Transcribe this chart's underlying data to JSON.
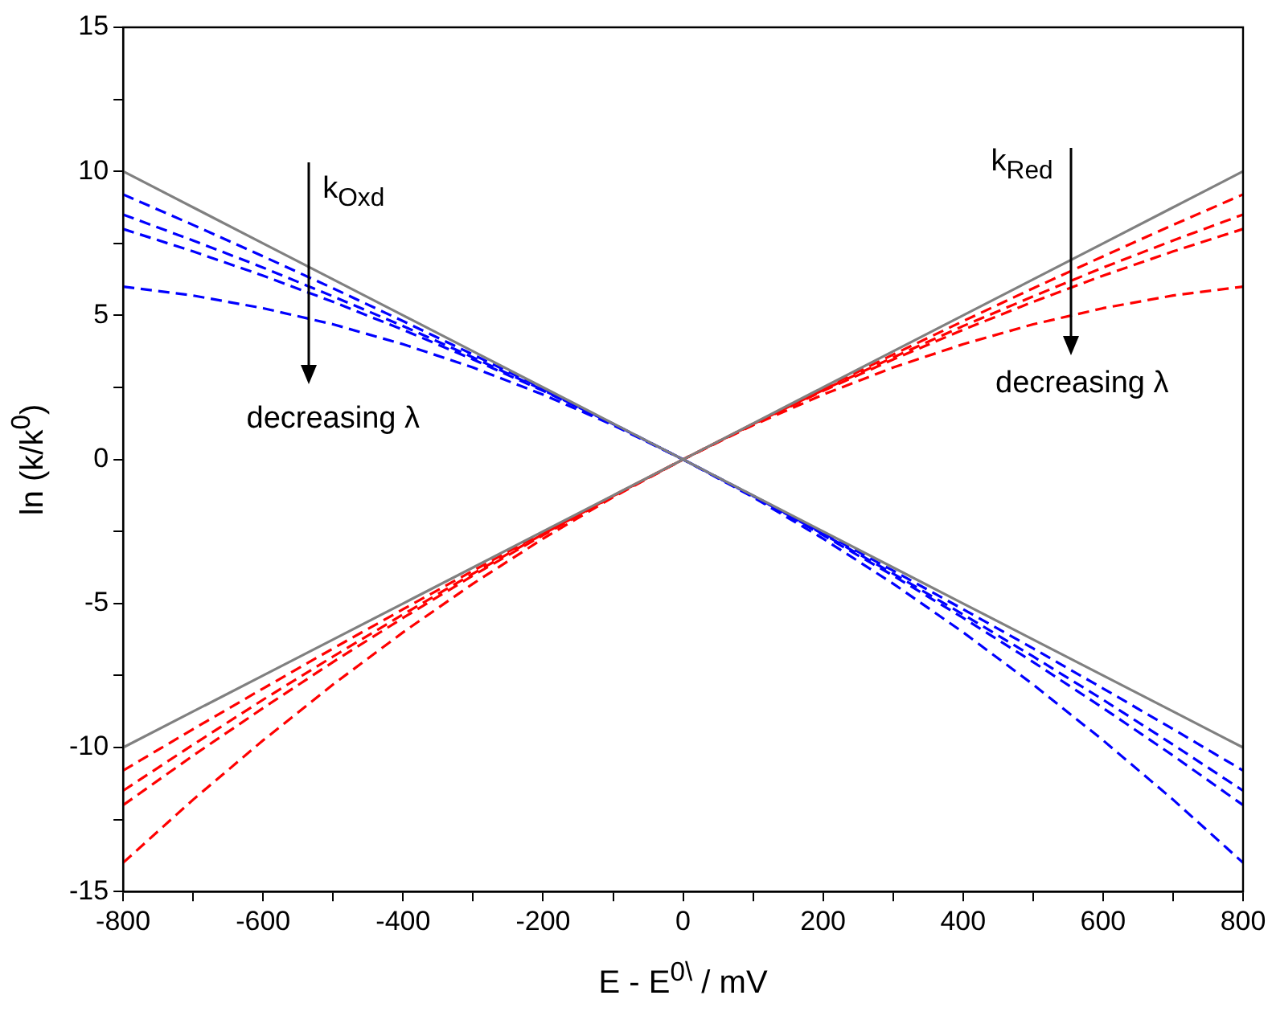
{
  "chart_data": {
    "type": "line",
    "xlabel": "E - E$^{0\\}$ / mV",
    "ylabel": "ln (k/k$^{0}$)",
    "x": [
      -800,
      -700,
      -600,
      -500,
      -400,
      -300,
      -200,
      -100,
      0,
      100,
      200,
      300,
      400,
      500,
      600,
      700,
      800
    ],
    "xlim": [
      -800,
      800
    ],
    "ylim": [
      -15,
      15
    ],
    "xticks": [
      -800,
      {
        "value": -700,
        "label": null
      },
      -600,
      {
        "value": -500,
        "label": null
      },
      -400,
      {
        "value": -300,
        "label": null
      },
      -200,
      {
        "value": -100,
        "label": null
      },
      0,
      {
        "value": 100,
        "label": null
      },
      200,
      {
        "value": 300,
        "label": null
      },
      400,
      {
        "value": 500,
        "label": null
      },
      600,
      {
        "value": 700,
        "label": null
      },
      800
    ],
    "yticks": [
      -15,
      {
        "value": -12.5,
        "label": null
      },
      -10,
      {
        "value": -7.5,
        "label": null
      },
      -5,
      {
        "value": -2.5,
        "label": null
      },
      0,
      {
        "value": 2.5,
        "label": null
      },
      5,
      {
        "value": 7.5,
        "label": null
      },
      10,
      {
        "value": 12.5,
        "label": null
      },
      15
    ],
    "grid": false,
    "legend": false,
    "marker": "none",
    "annotations": [
      "k$_{Oxd}$",
      "decreasing λ",
      "k$_{Red}$",
      "decreasing λ"
    ],
    "series": [
      {
        "color": "#808080",
        "line_style": "solid",
        "values": [
          10,
          8.75,
          7.5,
          6.25,
          5,
          3.75,
          2.5,
          1.25,
          0,
          -1.25,
          -2.5,
          -3.75,
          -5,
          -6.25,
          -7.5,
          -8.75,
          -10
        ]
      },
      {
        "color": "#808080",
        "line_style": "solid",
        "values": [
          -10,
          -8.75,
          -7.5,
          -6.25,
          -5,
          -3.75,
          -2.5,
          -1.25,
          0,
          1.25,
          2.5,
          3.75,
          5,
          6.25,
          7.5,
          8.75,
          10
        ]
      },
      {
        "color": "#0000ff",
        "line_style": "dashed",
        "values": [
          9.2,
          8.14,
          7.05,
          5.94,
          4.8,
          3.64,
          2.45,
          1.24,
          0,
          -1.26,
          -2.55,
          -3.86,
          -5.2,
          -6.56,
          -7.95,
          -9.36,
          -10.8
        ]
      },
      {
        "color": "#0000ff",
        "line_style": "dashed",
        "values": [
          8.5,
          7.6,
          6.66,
          5.66,
          4.63,
          3.54,
          2.41,
          1.23,
          0,
          -1.27,
          -2.59,
          -3.96,
          -5.38,
          -6.84,
          -8.34,
          -9.9,
          -11.5
        ]
      },
      {
        "color": "#0000ff",
        "line_style": "dashed",
        "values": [
          8.0,
          7.22,
          6.38,
          5.47,
          4.5,
          3.47,
          2.38,
          1.22,
          0,
          -1.28,
          -2.63,
          -4.03,
          -5.5,
          -7.03,
          -8.63,
          -10.28,
          -12.0
        ]
      },
      {
        "color": "#0000ff",
        "line_style": "dashed",
        "values": [
          6.0,
          5.69,
          5.25,
          4.69,
          4.0,
          3.19,
          2.25,
          1.19,
          0,
          -1.31,
          -2.75,
          -4.31,
          -6.0,
          -7.81,
          -9.75,
          -11.81,
          -14.0
        ]
      },
      {
        "color": "#ff0000",
        "line_style": "dashed",
        "values": [
          -10.8,
          -9.36,
          -7.95,
          -6.56,
          -5.2,
          -3.86,
          -2.55,
          -1.26,
          0,
          1.24,
          2.45,
          3.64,
          4.8,
          5.94,
          7.05,
          8.14,
          9.2
        ]
      },
      {
        "color": "#ff0000",
        "line_style": "dashed",
        "values": [
          -11.5,
          -9.9,
          -8.34,
          -6.84,
          -5.38,
          -3.96,
          -2.59,
          -1.27,
          0,
          1.23,
          2.41,
          3.54,
          4.63,
          5.66,
          6.66,
          7.6,
          8.5
        ]
      },
      {
        "color": "#ff0000",
        "line_style": "dashed",
        "values": [
          -12.0,
          -10.28,
          -8.63,
          -7.03,
          -5.5,
          -4.03,
          -2.63,
          -1.28,
          0,
          1.22,
          2.38,
          3.47,
          4.5,
          5.47,
          6.38,
          7.22,
          8.0
        ]
      },
      {
        "color": "#ff0000",
        "line_style": "dashed",
        "values": [
          -14.0,
          -11.81,
          -9.75,
          -7.81,
          -6.0,
          -4.31,
          -2.75,
          -1.31,
          0,
          1.19,
          2.25,
          3.19,
          4.0,
          4.69,
          5.25,
          5.69,
          6.0
        ]
      }
    ]
  }
}
